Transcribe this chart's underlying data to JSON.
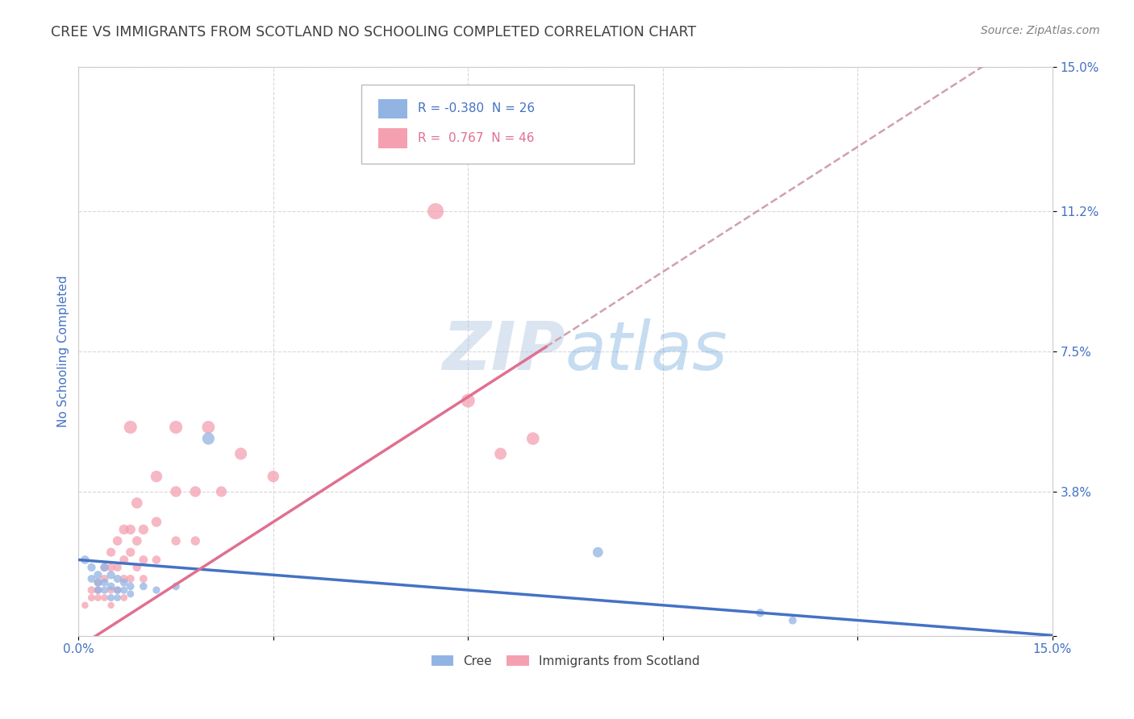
{
  "title": "CREE VS IMMIGRANTS FROM SCOTLAND NO SCHOOLING COMPLETED CORRELATION CHART",
  "source": "Source: ZipAtlas.com",
  "ylabel": "No Schooling Completed",
  "watermark": "ZIPatlas",
  "xlim": [
    0,
    0.15
  ],
  "ylim": [
    0,
    0.15
  ],
  "xtick_positions": [
    0.0,
    0.03,
    0.06,
    0.09,
    0.12,
    0.15
  ],
  "xtick_labels": [
    "0.0%",
    "",
    "",
    "",
    "",
    "15.0%"
  ],
  "ytick_positions": [
    0.0,
    0.038,
    0.075,
    0.112,
    0.15
  ],
  "ytick_labels": [
    "",
    "3.8%",
    "7.5%",
    "11.2%",
    "15.0%"
  ],
  "legend_cree_r": "-0.380",
  "legend_cree_n": "26",
  "legend_scotland_r": "0.767",
  "legend_scotland_n": "46",
  "cree_color": "#92b4e3",
  "scotland_color": "#f4a0b0",
  "trendline_cree_color": "#4472c4",
  "trendline_scotland_color": "#e07090",
  "trendline_scotland_dash_color": "#d0a0b0",
  "title_color": "#404040",
  "source_color": "#808080",
  "axis_label_color": "#4472c4",
  "tick_label_color": "#4472c4",
  "background_color": "#ffffff",
  "cree_points": [
    [
      0.001,
      0.02
    ],
    [
      0.002,
      0.018
    ],
    [
      0.002,
      0.015
    ],
    [
      0.003,
      0.016
    ],
    [
      0.003,
      0.014
    ],
    [
      0.003,
      0.012
    ],
    [
      0.004,
      0.018
    ],
    [
      0.004,
      0.014
    ],
    [
      0.004,
      0.012
    ],
    [
      0.005,
      0.016
    ],
    [
      0.005,
      0.013
    ],
    [
      0.005,
      0.01
    ],
    [
      0.006,
      0.015
    ],
    [
      0.006,
      0.012
    ],
    [
      0.006,
      0.01
    ],
    [
      0.007,
      0.014
    ],
    [
      0.007,
      0.012
    ],
    [
      0.008,
      0.013
    ],
    [
      0.008,
      0.011
    ],
    [
      0.01,
      0.013
    ],
    [
      0.012,
      0.012
    ],
    [
      0.015,
      0.013
    ],
    [
      0.02,
      0.052
    ],
    [
      0.08,
      0.022
    ],
    [
      0.105,
      0.006
    ],
    [
      0.11,
      0.004
    ]
  ],
  "scotland_points": [
    [
      0.001,
      0.008
    ],
    [
      0.002,
      0.01
    ],
    [
      0.002,
      0.012
    ],
    [
      0.003,
      0.014
    ],
    [
      0.003,
      0.012
    ],
    [
      0.003,
      0.01
    ],
    [
      0.004,
      0.018
    ],
    [
      0.004,
      0.015
    ],
    [
      0.004,
      0.01
    ],
    [
      0.005,
      0.022
    ],
    [
      0.005,
      0.018
    ],
    [
      0.005,
      0.012
    ],
    [
      0.005,
      0.008
    ],
    [
      0.006,
      0.025
    ],
    [
      0.006,
      0.018
    ],
    [
      0.006,
      0.012
    ],
    [
      0.007,
      0.028
    ],
    [
      0.007,
      0.02
    ],
    [
      0.007,
      0.015
    ],
    [
      0.007,
      0.01
    ],
    [
      0.008,
      0.055
    ],
    [
      0.008,
      0.028
    ],
    [
      0.008,
      0.022
    ],
    [
      0.008,
      0.015
    ],
    [
      0.009,
      0.035
    ],
    [
      0.009,
      0.025
    ],
    [
      0.009,
      0.018
    ],
    [
      0.01,
      0.028
    ],
    [
      0.01,
      0.02
    ],
    [
      0.01,
      0.015
    ],
    [
      0.012,
      0.042
    ],
    [
      0.012,
      0.03
    ],
    [
      0.012,
      0.02
    ],
    [
      0.015,
      0.055
    ],
    [
      0.015,
      0.038
    ],
    [
      0.015,
      0.025
    ],
    [
      0.018,
      0.038
    ],
    [
      0.018,
      0.025
    ],
    [
      0.02,
      0.055
    ],
    [
      0.022,
      0.038
    ],
    [
      0.025,
      0.048
    ],
    [
      0.03,
      0.042
    ],
    [
      0.055,
      0.112
    ],
    [
      0.06,
      0.062
    ],
    [
      0.065,
      0.048
    ],
    [
      0.07,
      0.052
    ]
  ],
  "cree_sizes": [
    60,
    55,
    50,
    55,
    50,
    45,
    55,
    50,
    45,
    55,
    50,
    42,
    52,
    48,
    40,
    50,
    45,
    48,
    42,
    48,
    45,
    48,
    120,
    85,
    55,
    50
  ],
  "scotland_sizes": [
    38,
    42,
    48,
    52,
    48,
    40,
    58,
    52,
    40,
    65,
    55,
    42,
    36,
    70,
    55,
    42,
    80,
    62,
    52,
    40,
    135,
    80,
    65,
    52,
    98,
    72,
    55,
    80,
    62,
    50,
    108,
    82,
    58,
    135,
    95,
    68,
    95,
    68,
    130,
    92,
    118,
    108,
    210,
    148,
    115,
    128
  ]
}
